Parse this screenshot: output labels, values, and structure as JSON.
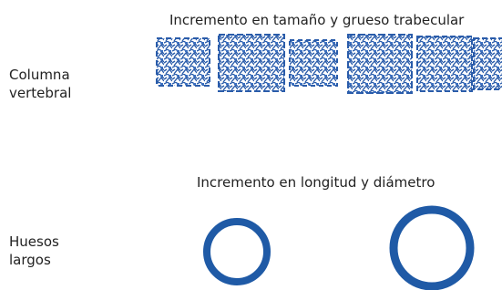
{
  "spine": {
    "heading": "Incremento en tamaño y grueso trabecular",
    "label": "Columna vertebral"
  },
  "long_bones": {
    "heading": "Incremento en longitud y diámetro",
    "label": "Huesos largos"
  }
}
